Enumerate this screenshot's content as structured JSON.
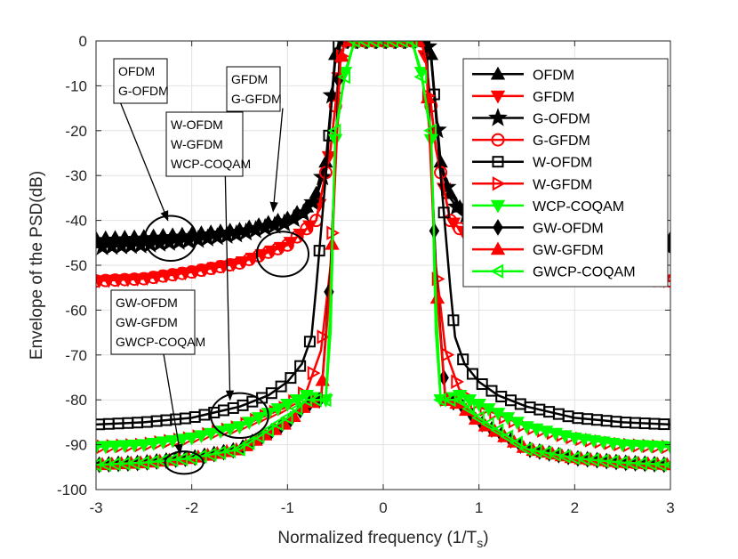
{
  "chart_data": {
    "type": "line",
    "title": "",
    "xlabel_main": "Normalized frequency (1/T",
    "xlabel_sub": "s",
    "xlabel_tail": ")",
    "ylabel": "Envelope of the PSD(dB)",
    "xlim": [
      -3,
      3
    ],
    "ylim": [
      -100,
      0
    ],
    "xticks": [
      -3,
      -2,
      -1,
      0,
      1,
      2,
      3
    ],
    "yticks": [
      0,
      -10,
      -20,
      -30,
      -40,
      -50,
      -60,
      -70,
      -80,
      -90,
      -100
    ],
    "xtick_labels": [
      "-3",
      "-2",
      "-1",
      "0",
      "1",
      "2",
      "3"
    ],
    "ytick_labels": [
      "0",
      "-10",
      "-20",
      "-30",
      "-40",
      "-50",
      "-60",
      "-70",
      "-80",
      "-90",
      "-100"
    ],
    "grid": true,
    "legend_position": "top-right",
    "series": [
      {
        "name": "OFDM",
        "color": "#000000",
        "marker": "triangle-up",
        "x": [
          -3.0,
          -2.5,
          -2.0,
          -1.5,
          -1.0,
          -0.8,
          -0.7,
          -0.6,
          -0.55,
          -0.5,
          -0.45,
          0.45,
          0.5,
          0.55,
          0.6,
          0.7,
          0.8,
          1.0,
          1.5,
          2.0,
          2.5,
          3.0
        ],
        "y": [
          -44,
          -43.6,
          -43,
          -42,
          -39.5,
          -37,
          -34,
          -27,
          -15,
          -3,
          0,
          0,
          -3,
          -15,
          -27,
          -34,
          -37,
          -39.5,
          -42,
          -43,
          -43.6,
          -44
        ]
      },
      {
        "name": "GFDM",
        "color": "#ff0000",
        "marker": "triangle-down",
        "x": [
          -3.0,
          -2.5,
          -2.0,
          -1.5,
          -1.0,
          -0.7,
          -0.55,
          -0.45,
          -0.4,
          0.4,
          0.45,
          0.55,
          0.7,
          1.0,
          1.5,
          2.0,
          2.5,
          3.0
        ],
        "y": [
          -53.5,
          -53,
          -51.5,
          -49.5,
          -45.5,
          -40,
          -24,
          -5,
          0,
          0,
          -5,
          -24,
          -40,
          -45.5,
          -49.5,
          -51.5,
          -53,
          -53.5
        ]
      },
      {
        "name": "G-OFDM",
        "color": "#000000",
        "marker": "star",
        "x": [
          -3.0,
          -2.5,
          -2.0,
          -1.5,
          -1.0,
          -0.8,
          -0.7,
          -0.6,
          -0.55,
          -0.5,
          -0.45,
          0.45,
          0.5,
          0.55,
          0.6,
          0.7,
          0.8,
          1.0,
          1.5,
          2.0,
          2.5,
          3.0
        ],
        "y": [
          -46,
          -45.5,
          -44.5,
          -43,
          -40.5,
          -38,
          -35,
          -28,
          -16,
          -4,
          0,
          0,
          -4,
          -16,
          -28,
          -35,
          -38,
          -40.5,
          -43,
          -44.5,
          -45.5,
          -46
        ]
      },
      {
        "name": "G-GFDM",
        "color": "#ff0000",
        "marker": "circle",
        "x": [
          -3.0,
          -2.5,
          -2.0,
          -1.5,
          -1.0,
          -0.7,
          -0.55,
          -0.45,
          -0.4,
          0.4,
          0.45,
          0.55,
          0.7,
          1.0,
          1.5,
          2.0,
          2.5,
          3.0
        ],
        "y": [
          -53.5,
          -53,
          -51.5,
          -49.5,
          -45.5,
          -40,
          -24,
          -5,
          0,
          0,
          -5,
          -24,
          -40,
          -45.5,
          -49.5,
          -51.5,
          -53,
          -53.5
        ]
      },
      {
        "name": "W-OFDM",
        "color": "#000000",
        "marker": "square",
        "x": [
          -3.0,
          -2.5,
          -2.0,
          -1.5,
          -1.2,
          -1.0,
          -0.85,
          -0.75,
          -0.7,
          -0.6,
          -0.5,
          -0.45,
          0.45,
          0.5,
          0.6,
          0.7,
          0.75,
          0.85,
          1.0,
          1.2,
          1.5,
          2.0,
          2.5,
          3.0
        ],
        "y": [
          -85.5,
          -85,
          -84,
          -81.5,
          -79,
          -76,
          -72,
          -66,
          -55,
          -30,
          -3,
          0,
          0,
          -3,
          -30,
          -55,
          -66,
          -72,
          -76,
          -79,
          -81.5,
          -84,
          -85,
          -85.5
        ]
      },
      {
        "name": "W-GFDM",
        "color": "#ff0000",
        "marker": "triangle-right",
        "x": [
          -3.0,
          -2.5,
          -2.0,
          -1.5,
          -1.0,
          -0.8,
          -0.65,
          -0.55,
          -0.45,
          -0.4,
          0.4,
          0.45,
          0.55,
          0.65,
          0.8,
          1.0,
          1.5,
          2.0,
          2.5,
          3.0
        ],
        "y": [
          -90.5,
          -90,
          -88.5,
          -86,
          -81.5,
          -78,
          -69,
          -50,
          -5,
          0,
          0,
          -5,
          -50,
          -69,
          -78,
          -81.5,
          -86,
          -88.5,
          -90,
          -90.5
        ]
      },
      {
        "name": "WCP-COQAM",
        "color": "#00ff00",
        "marker": "triangle-down",
        "x": [
          -3.0,
          -2.5,
          -2.0,
          -1.5,
          -1.0,
          -0.8,
          -0.6,
          -0.55,
          -0.5,
          -0.4,
          -0.3,
          0.3,
          0.4,
          0.5,
          0.55,
          0.6,
          0.8,
          1.0,
          1.5,
          2.0,
          2.5,
          3.0
        ],
        "y": [
          -90.5,
          -90,
          -88.5,
          -86,
          -81,
          -79,
          -80,
          -65,
          -22,
          -7,
          0,
          0,
          -7,
          -22,
          -65,
          -80,
          -79,
          -81,
          -86,
          -88.5,
          -90,
          -90.5
        ]
      },
      {
        "name": "GW-OFDM",
        "color": "#000000",
        "marker": "diamond",
        "x": [
          -3.0,
          -2.5,
          -2.0,
          -1.5,
          -1.0,
          -0.8,
          -0.65,
          -0.55,
          -0.45,
          0.45,
          0.55,
          0.65,
          0.8,
          1.0,
          1.5,
          2.0,
          2.5,
          3.0
        ],
        "y": [
          -94.5,
          -94,
          -93,
          -91,
          -85,
          -81,
          -80,
          -51,
          0,
          0,
          -51,
          -80,
          -81,
          -85,
          -91,
          -93,
          -94,
          -94.5
        ]
      },
      {
        "name": "GW-GFDM",
        "color": "#ff0000",
        "marker": "triangle-up",
        "x": [
          -3.0,
          -2.5,
          -2.0,
          -1.5,
          -1.0,
          -0.8,
          -0.65,
          -0.55,
          -0.45,
          -0.4,
          0.4,
          0.45,
          0.55,
          0.65,
          0.8,
          1.0,
          1.5,
          2.0,
          2.5,
          3.0
        ],
        "y": [
          -94.5,
          -94,
          -93,
          -91,
          -85,
          -81,
          -80,
          -53,
          -5,
          0,
          0,
          -5,
          -53,
          -80,
          -81,
          -85,
          -91,
          -93,
          -94,
          -94.5
        ]
      },
      {
        "name": "GWCP-COQAM",
        "color": "#00ff00",
        "marker": "triangle-left",
        "x": [
          -3.0,
          -2.5,
          -2.0,
          -1.5,
          -1.0,
          -0.8,
          -0.6,
          -0.55,
          -0.5,
          -0.4,
          -0.3,
          0.3,
          0.4,
          0.5,
          0.55,
          0.6,
          0.8,
          1.0,
          1.5,
          2.0,
          2.5,
          3.0
        ],
        "y": [
          -94.5,
          -94,
          -93,
          -91,
          -84,
          -80,
          -80,
          -58,
          -20,
          -8,
          0,
          0,
          -8,
          -20,
          -58,
          -80,
          -80,
          -84,
          -91,
          -93,
          -94,
          -94.5
        ]
      }
    ],
    "annotations": [
      {
        "name": "annotation-ofdm-gofdm",
        "lines": [
          "OFDM",
          "G-OFDM"
        ],
        "ellipse": {
          "cx": -2.22,
          "cy": -44,
          "rx": 0.27,
          "ry": 5
        },
        "arrow_from": {
          "x": -2.75,
          "y": -13.5
        },
        "arrow_to": {
          "x": -2.25,
          "y": -40
        }
      },
      {
        "name": "annotation-gfdm-ggfdm",
        "lines": [
          "GFDM",
          "G-GFDM"
        ],
        "ellipse": {
          "cx": -1.05,
          "cy": -47.5,
          "rx": 0.27,
          "ry": 5
        },
        "arrow_from": {
          "x": -1.05,
          "y": -15
        },
        "arrow_to": {
          "x": -1.15,
          "y": -38
        }
      },
      {
        "name": "annotation-w-group",
        "lines": [
          "W-OFDM",
          "W-GFDM",
          "WCP-COQAM"
        ],
        "ellipse": {
          "cx": -1.5,
          "cy": -83.5,
          "rx": 0.3,
          "ry": 5
        },
        "arrow_from": {
          "x": -1.65,
          "y": -30
        },
        "arrow_to": {
          "x": -1.6,
          "y": -80
        }
      },
      {
        "name": "annotation-gw-group",
        "lines": [
          "GW-OFDM",
          "GW-GFDM",
          "GWCP-COQAM"
        ],
        "ellipse": {
          "cx": -2.08,
          "cy": -94,
          "rx": 0.2,
          "ry": 2.5
        },
        "arrow_from": {
          "x": -2.3,
          "y": -69
        },
        "arrow_to": {
          "x": -2.12,
          "y": -92
        }
      }
    ]
  }
}
